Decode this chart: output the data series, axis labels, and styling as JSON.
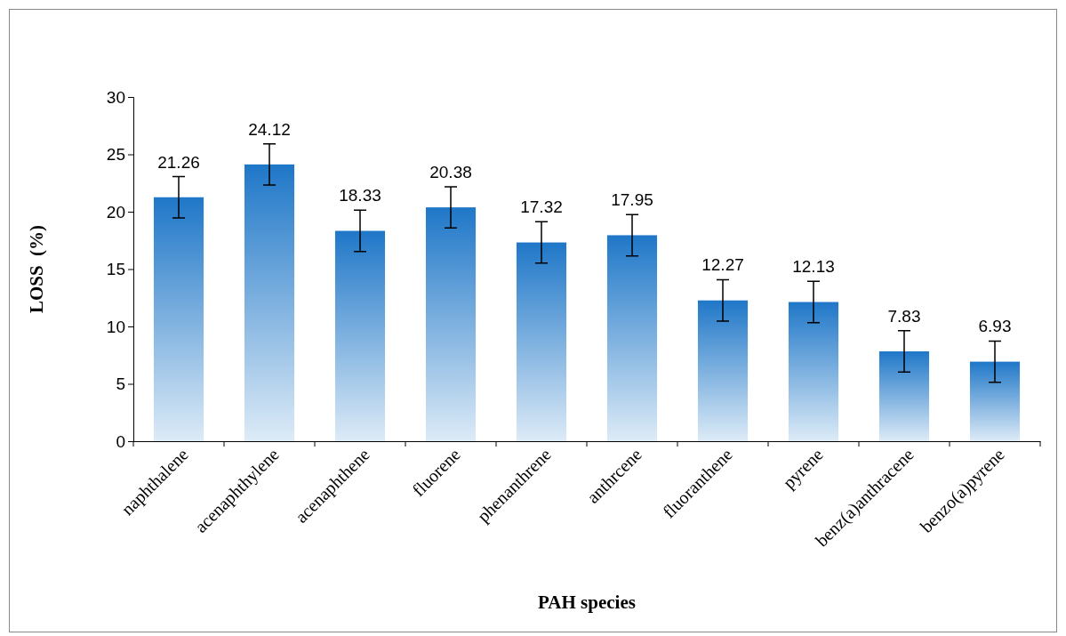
{
  "chart_data": {
    "type": "bar",
    "xlabel": "PAH species",
    "ylabel": "LOSS  (%)",
    "categories": [
      "naphthalene",
      "acenaphthylene",
      "acenaphthene",
      "fluorene",
      "phenanthrene",
      "anthrcene",
      "fluoranthene",
      "pyrene",
      "benz(a)anthracene",
      "benzo(a)pyrene"
    ],
    "values": [
      21.26,
      24.12,
      18.33,
      20.38,
      17.32,
      17.95,
      12.27,
      12.13,
      7.83,
      6.93
    ],
    "errors": [
      1.8,
      1.8,
      1.8,
      1.8,
      1.8,
      1.8,
      1.8,
      1.8,
      1.8,
      1.8
    ],
    "color": "#1f77c8",
    "ylim": [
      0,
      30
    ],
    "yticks": [
      0,
      5,
      10,
      15,
      20,
      25,
      30
    ],
    "data_labels": true
  }
}
